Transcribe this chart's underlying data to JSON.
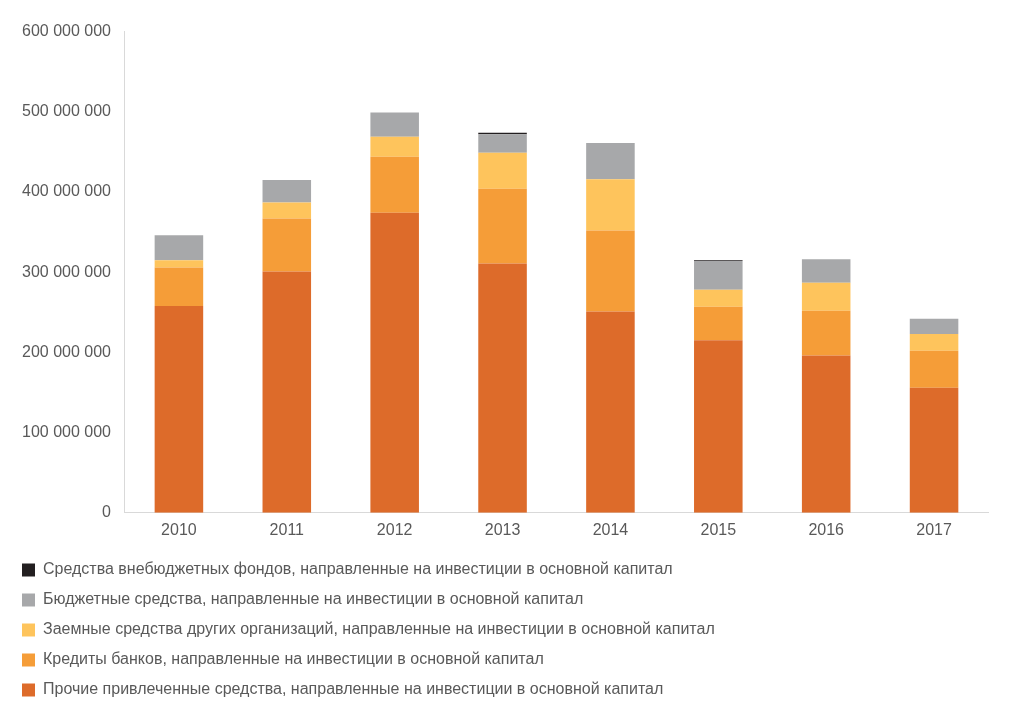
{
  "chart_data": {
    "type": "bar",
    "stacked": true,
    "categories": [
      "2010",
      "2011",
      "2012",
      "2013",
      "2014",
      "2015",
      "2016",
      "2017"
    ],
    "series": [
      {
        "name": "Прочие привлеченные средства, направленные на инвестиции в основной капитал",
        "color": "#dd6b2a",
        "values": [
          258000000,
          301000000,
          374000000,
          311000000,
          251000000,
          215000000,
          196000000,
          156000000
        ]
      },
      {
        "name": "Кредиты банков, направленные на инвестиции в основной капитал",
        "color": "#f59d38",
        "values": [
          48000000,
          66000000,
          70000000,
          93000000,
          101000000,
          42000000,
          56000000,
          46000000
        ]
      },
      {
        "name": "Заемные средства других организаций, направленные на инвестиции в основной капитал",
        "color": "#fec45c",
        "values": [
          9000000,
          20000000,
          25000000,
          45000000,
          64000000,
          21000000,
          35000000,
          21000000
        ]
      },
      {
        "name": "Бюджетные средства, направленные на инвестиции в основной капитал",
        "color": "#a7a8aa",
        "values": [
          31000000,
          28000000,
          30000000,
          23000000,
          45000000,
          36000000,
          29000000,
          19000000
        ]
      },
      {
        "name": "Средства внебюджетных фондов, направленные на инвестиции в основной капитал",
        "color": "#231f20",
        "values": [
          null,
          null,
          null,
          2000000,
          null,
          1000000,
          null,
          null
        ]
      }
    ],
    "ylim": [
      0,
      600000000
    ],
    "yticks": [
      {
        "value": 0,
        "label": "0"
      },
      {
        "value": 100000000,
        "label": "100 000 000"
      },
      {
        "value": 200000000,
        "label": "200 000 000"
      },
      {
        "value": 300000000,
        "label": "300 000 000"
      },
      {
        "value": 400000000,
        "label": "400 000 000"
      },
      {
        "value": 500000000,
        "label": "500 000 000"
      },
      {
        "value": 600000000,
        "label": "600 000 000"
      }
    ],
    "grid": false,
    "legend": "bottom"
  }
}
